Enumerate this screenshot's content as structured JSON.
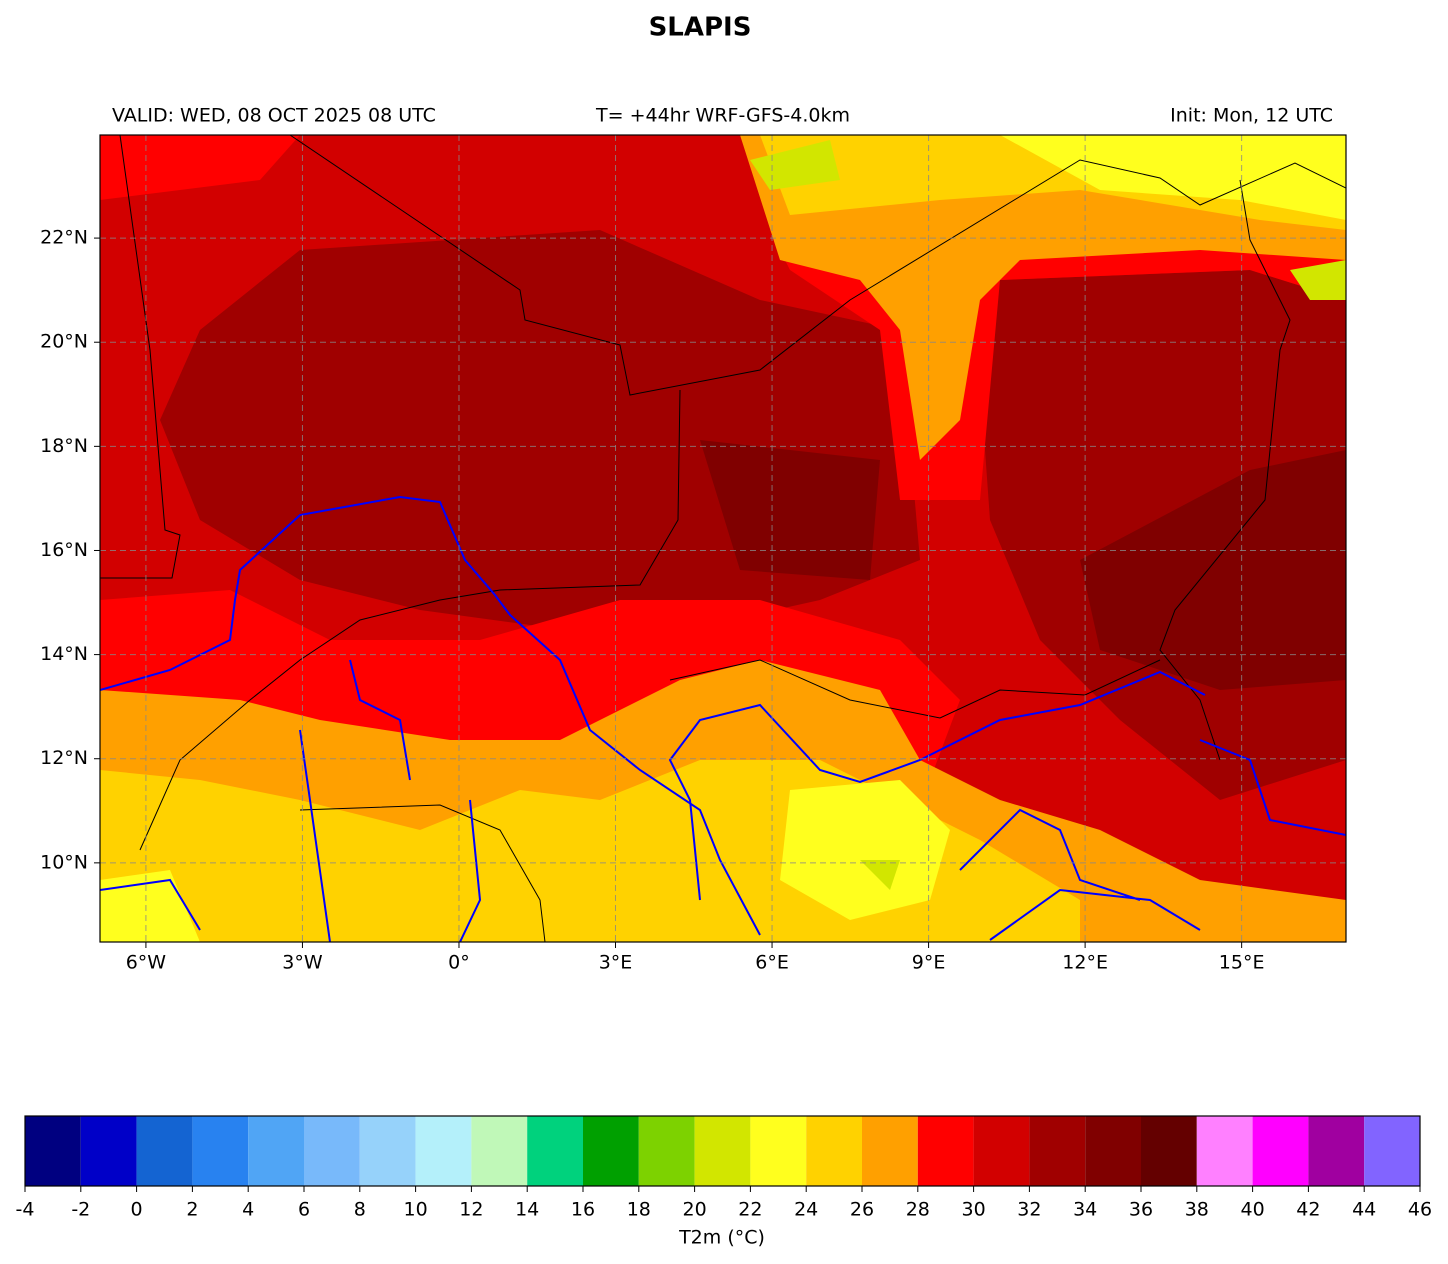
{
  "title": "SLAPIS",
  "header": {
    "left": "VALID: WED, 08 OCT 2025 08 UTC",
    "center": "T= +44hr WRF-GFS-4.0km",
    "right": "Init: Mon, 12 UTC"
  },
  "map": {
    "lonlim": [
      -6.88,
      17.0
    ],
    "latlim": [
      8.48,
      23.98
    ],
    "lon_ticks": [
      {
        "value": -6,
        "label": "6°W"
      },
      {
        "value": -3,
        "label": "3°W"
      },
      {
        "value": 0,
        "label": "0°"
      },
      {
        "value": 3,
        "label": "3°E"
      },
      {
        "value": 6,
        "label": "6°E"
      },
      {
        "value": 9,
        "label": "9°E"
      },
      {
        "value": 12,
        "label": "12°E"
      },
      {
        "value": 15,
        "label": "15°E"
      }
    ],
    "lat_ticks": [
      {
        "value": 10,
        "label": "10°N"
      },
      {
        "value": 12,
        "label": "12°N"
      },
      {
        "value": 14,
        "label": "14°N"
      },
      {
        "value": 16,
        "label": "16°N"
      },
      {
        "value": 18,
        "label": "18°N"
      },
      {
        "value": 20,
        "label": "20°N"
      },
      {
        "value": 22,
        "label": "22°N"
      }
    ],
    "grid": true
  },
  "colorbar": {
    "label": "T2m (°C)",
    "levels": [
      -4,
      -2,
      0,
      2,
      4,
      6,
      8,
      10,
      12,
      14,
      16,
      18,
      20,
      22,
      24,
      26,
      28,
      30,
      32,
      34,
      36,
      38,
      40,
      42,
      44,
      46
    ],
    "colors": [
      "#000080",
      "#0000c8",
      "#1464d2",
      "#2882f0",
      "#50a5f5",
      "#78b9fa",
      "#96d2fa",
      "#b4f0fa",
      "#c0f8b8",
      "#00d27d",
      "#00a000",
      "#7dd200",
      "#d2e600",
      "#ffff1e",
      "#ffd200",
      "#ffa000",
      "#ff0000",
      "#d20000",
      "#a00000",
      "#800000",
      "#640000",
      "#ff80ff",
      "#ff00ff",
      "#a000a0",
      "#8264ff"
    ]
  }
}
